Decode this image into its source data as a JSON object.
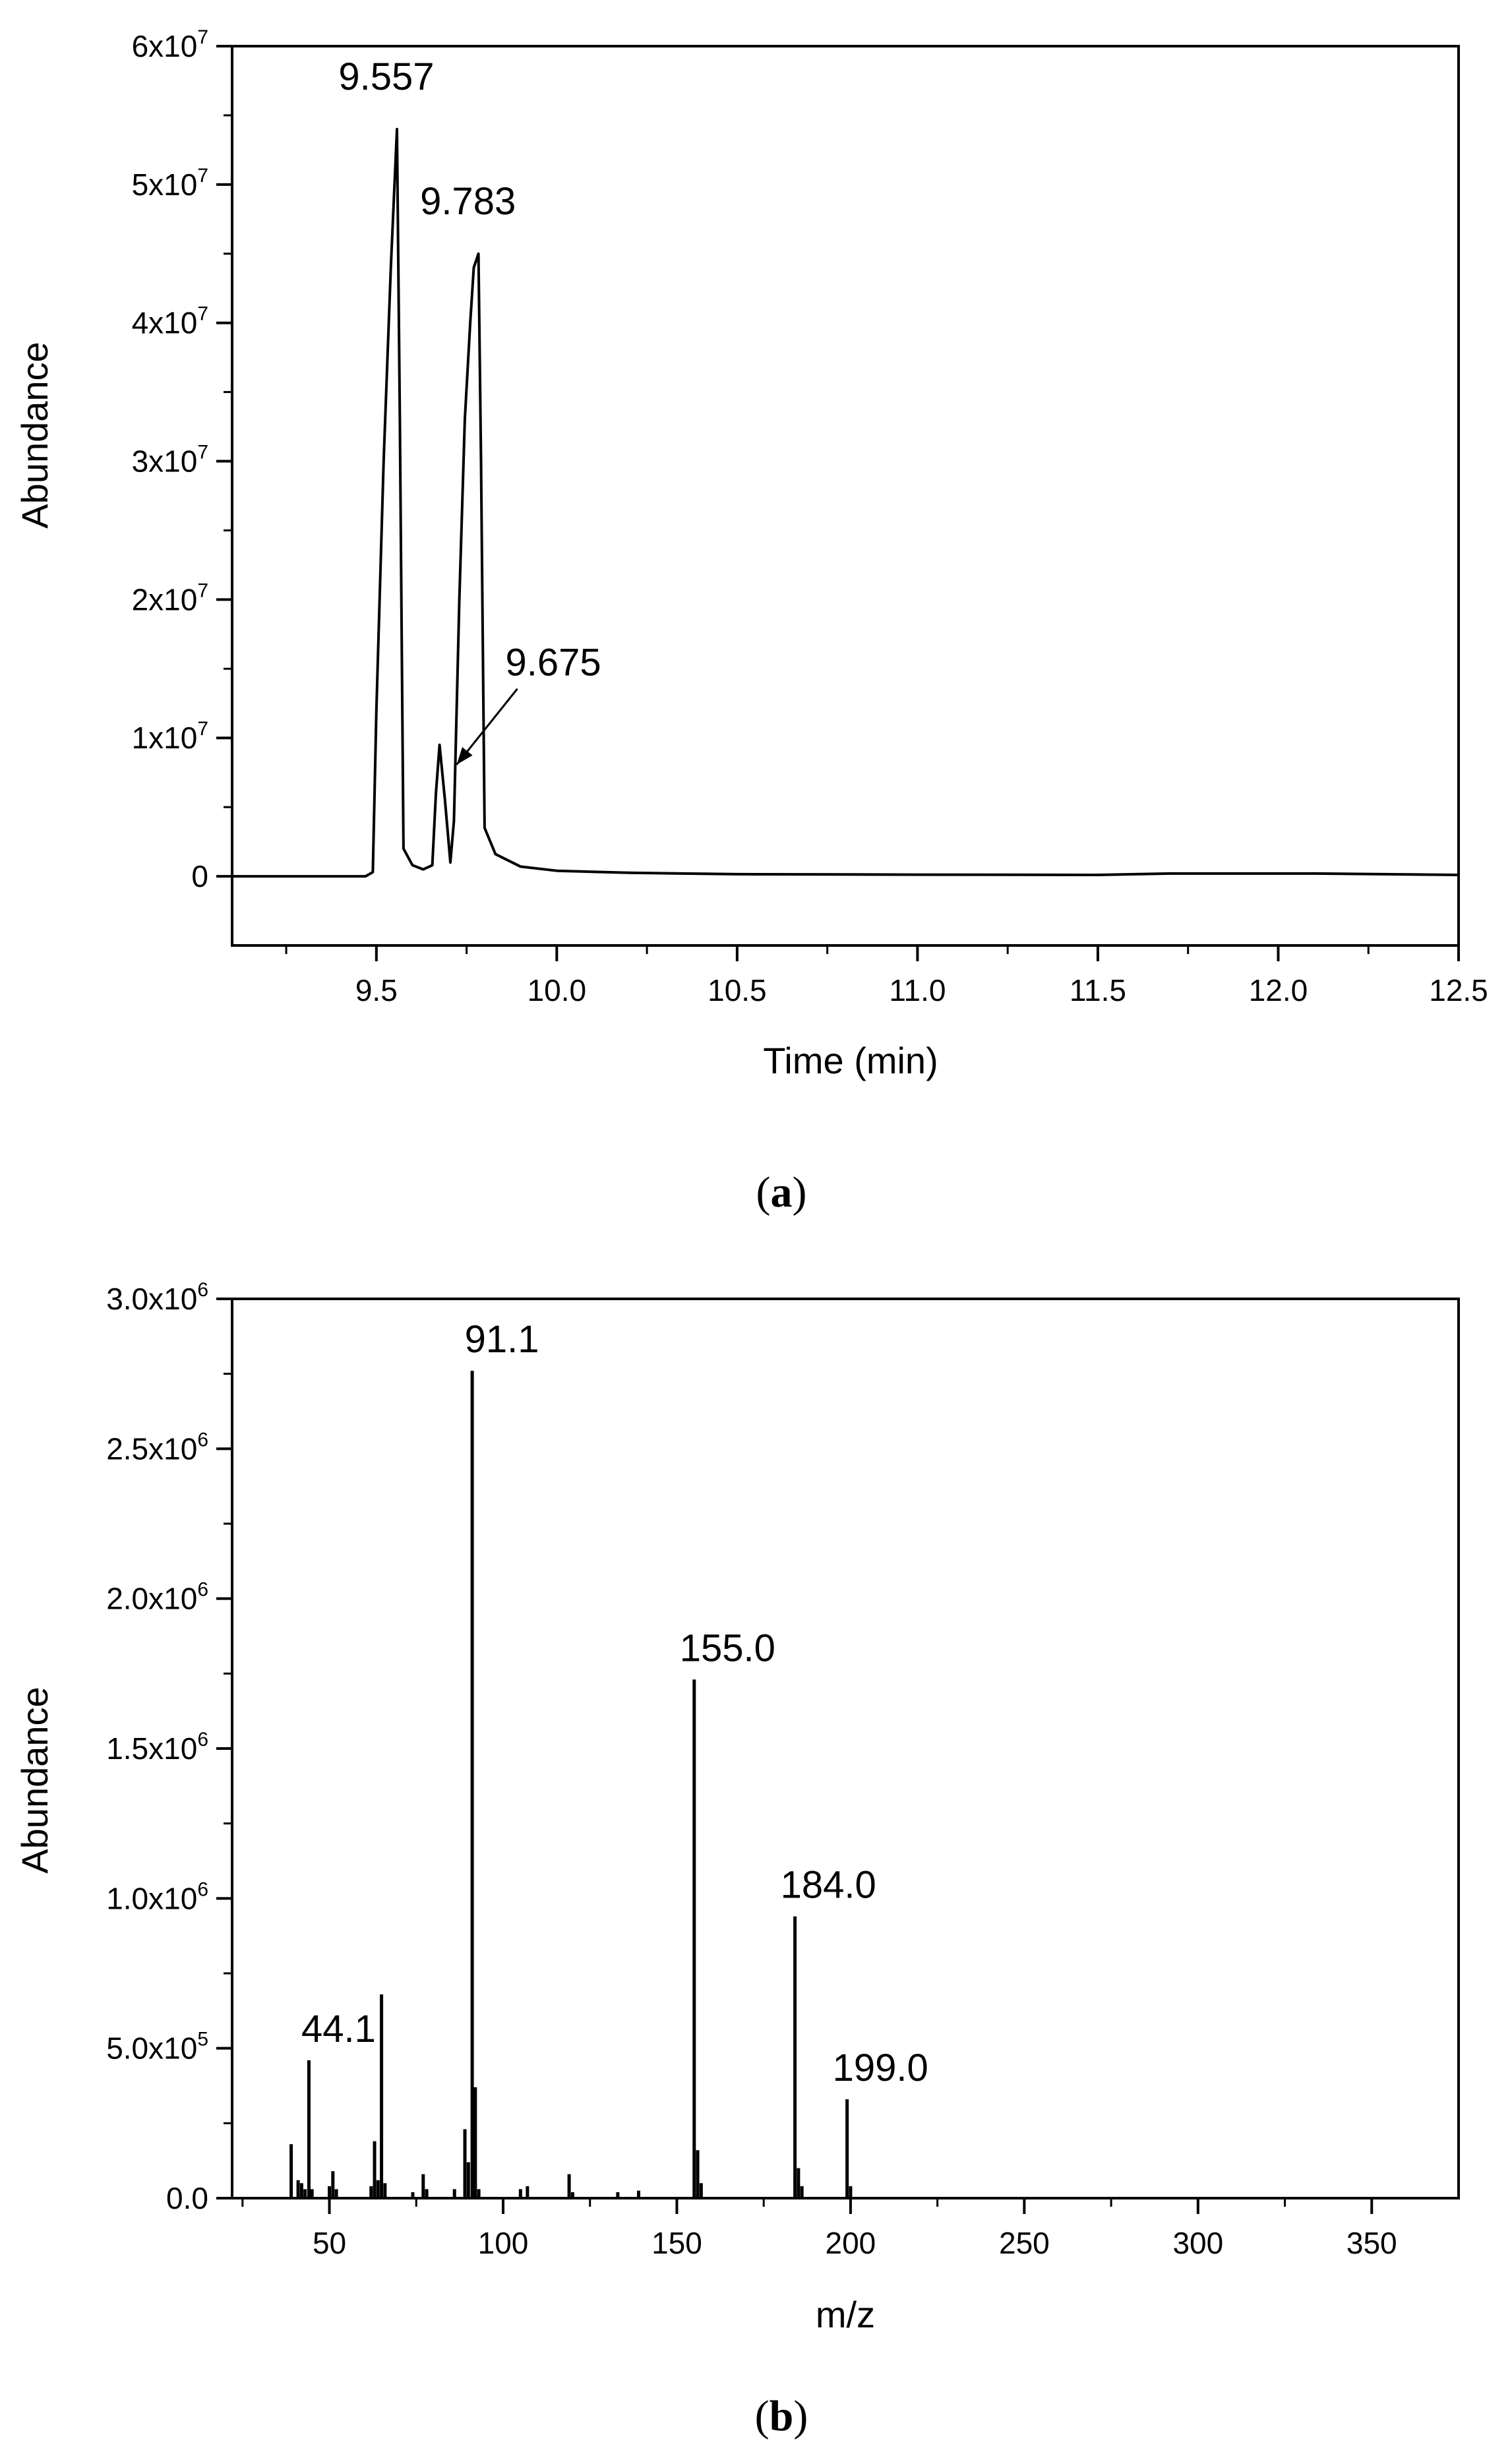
{
  "chart_data": [
    {
      "type": "line",
      "panel": "a",
      "caption_open": "(",
      "caption_letter": "a",
      "caption_close": ")",
      "xlabel": "Time (min)",
      "ylabel": "Abundance",
      "xlim": [
        9.1,
        12.5
      ],
      "ylim": [
        -5000000,
        60000000
      ],
      "xticks": [
        {
          "v": 9.5,
          "label": "9.5"
        },
        {
          "v": 10.0,
          "label": "10.0"
        },
        {
          "v": 10.5,
          "label": "10.5"
        },
        {
          "v": 11.0,
          "label": "11.0"
        },
        {
          "v": 11.5,
          "label": "11.5"
        },
        {
          "v": 12.0,
          "label": "12.0"
        },
        {
          "v": 12.5,
          "label": "12.5"
        }
      ],
      "yticks": [
        {
          "v": 0,
          "base": "0",
          "exp": ""
        },
        {
          "v": 10000000,
          "base": "1x10",
          "exp": "7"
        },
        {
          "v": 20000000,
          "base": "2x10",
          "exp": "7"
        },
        {
          "v": 30000000,
          "base": "3x10",
          "exp": "7"
        },
        {
          "v": 40000000,
          "base": "4x10",
          "exp": "7"
        },
        {
          "v": 50000000,
          "base": "5x10",
          "exp": "7"
        },
        {
          "v": 60000000,
          "base": "6x10",
          "exp": "7"
        }
      ],
      "series": [
        {
          "x": [
            9.1,
            9.47,
            9.49,
            9.5,
            9.52,
            9.54,
            9.557,
            9.565,
            9.575,
            9.6,
            9.63,
            9.655,
            9.665,
            9.675,
            9.69,
            9.705,
            9.715,
            9.73,
            9.745,
            9.76,
            9.77,
            9.783,
            9.79,
            9.8,
            9.83,
            9.9,
            10.0,
            10.2,
            10.5,
            11.0,
            11.5,
            11.7,
            12.1,
            12.5
          ],
          "y": [
            0,
            0,
            300000,
            12000000,
            30000000,
            44000000,
            54000000,
            33000000,
            2000000,
            800000,
            500000,
            800000,
            6000000,
            9500000,
            5500000,
            1000000,
            4000000,
            20000000,
            33000000,
            40000000,
            44000000,
            45000000,
            30000000,
            3500000,
            1600000,
            700000,
            400000,
            250000,
            150000,
            120000,
            100000,
            200000,
            200000,
            100000
          ]
        }
      ],
      "annotations": [
        {
          "text": "9.557",
          "x": 9.557,
          "y": 54000000
        },
        {
          "text": "9.783",
          "x": 9.783,
          "y": 45000000
        },
        {
          "text": "9.675",
          "x": 9.675,
          "y": 9500000,
          "arrow": true
        }
      ]
    },
    {
      "type": "bar",
      "panel": "b",
      "caption_open": "(",
      "caption_letter": "b",
      "caption_close": ")",
      "xlabel": "m/z",
      "ylabel": "Abundance",
      "xlim": [
        22,
        375
      ],
      "ylim": [
        0,
        3000000
      ],
      "xticks": [
        {
          "v": 50,
          "label": "50"
        },
        {
          "v": 100,
          "label": "100"
        },
        {
          "v": 150,
          "label": "150"
        },
        {
          "v": 200,
          "label": "200"
        },
        {
          "v": 250,
          "label": "250"
        },
        {
          "v": 300,
          "label": "300"
        },
        {
          "v": 350,
          "label": "350"
        }
      ],
      "yticks": [
        {
          "v": 0,
          "base": "0.0",
          "exp": ""
        },
        {
          "v": 500000,
          "base": "5.0x10",
          "exp": "5"
        },
        {
          "v": 1000000,
          "base": "1.0x10",
          "exp": "6"
        },
        {
          "v": 1500000,
          "base": "1.5x10",
          "exp": "6"
        },
        {
          "v": 2000000,
          "base": "2.0x10",
          "exp": "6"
        },
        {
          "v": 2500000,
          "base": "2.5x10",
          "exp": "6"
        },
        {
          "v": 3000000,
          "base": "3.0x10",
          "exp": "6"
        }
      ],
      "peaks": [
        {
          "x": 39.0,
          "y": 180000
        },
        {
          "x": 41.0,
          "y": 60000
        },
        {
          "x": 42.0,
          "y": 50000
        },
        {
          "x": 43.0,
          "y": 30000
        },
        {
          "x": 44.1,
          "y": 460000
        },
        {
          "x": 45.0,
          "y": 30000
        },
        {
          "x": 50.0,
          "y": 40000
        },
        {
          "x": 51.0,
          "y": 90000
        },
        {
          "x": 52.0,
          "y": 30000
        },
        {
          "x": 62.0,
          "y": 40000
        },
        {
          "x": 63.0,
          "y": 190000
        },
        {
          "x": 64.0,
          "y": 60000
        },
        {
          "x": 65.0,
          "y": 680000
        },
        {
          "x": 66.0,
          "y": 50000
        },
        {
          "x": 74.0,
          "y": 20000
        },
        {
          "x": 77.0,
          "y": 80000
        },
        {
          "x": 78.0,
          "y": 30000
        },
        {
          "x": 86.0,
          "y": 30000
        },
        {
          "x": 89.0,
          "y": 230000
        },
        {
          "x": 90.0,
          "y": 120000
        },
        {
          "x": 91.1,
          "y": 2760000
        },
        {
          "x": 92.0,
          "y": 370000
        },
        {
          "x": 93.0,
          "y": 30000
        },
        {
          "x": 105.0,
          "y": 30000
        },
        {
          "x": 107.0,
          "y": 40000
        },
        {
          "x": 119.0,
          "y": 80000
        },
        {
          "x": 120.0,
          "y": 20000
        },
        {
          "x": 133.0,
          "y": 20000
        },
        {
          "x": 139.0,
          "y": 25000
        },
        {
          "x": 155.0,
          "y": 1730000
        },
        {
          "x": 156.0,
          "y": 160000
        },
        {
          "x": 157.0,
          "y": 50000
        },
        {
          "x": 184.0,
          "y": 940000
        },
        {
          "x": 185.0,
          "y": 100000
        },
        {
          "x": 186.0,
          "y": 40000
        },
        {
          "x": 199.0,
          "y": 330000
        },
        {
          "x": 200.0,
          "y": 40000
        }
      ],
      "annotations": [
        {
          "text": "44.1",
          "x": 44.1,
          "y": 460000
        },
        {
          "text": "91.1",
          "x": 91.1,
          "y": 2760000
        },
        {
          "text": "155.0",
          "x": 155.0,
          "y": 1730000
        },
        {
          "text": "184.0",
          "x": 184.0,
          "y": 940000
        },
        {
          "text": "199.0",
          "x": 199.0,
          "y": 330000
        }
      ]
    }
  ]
}
